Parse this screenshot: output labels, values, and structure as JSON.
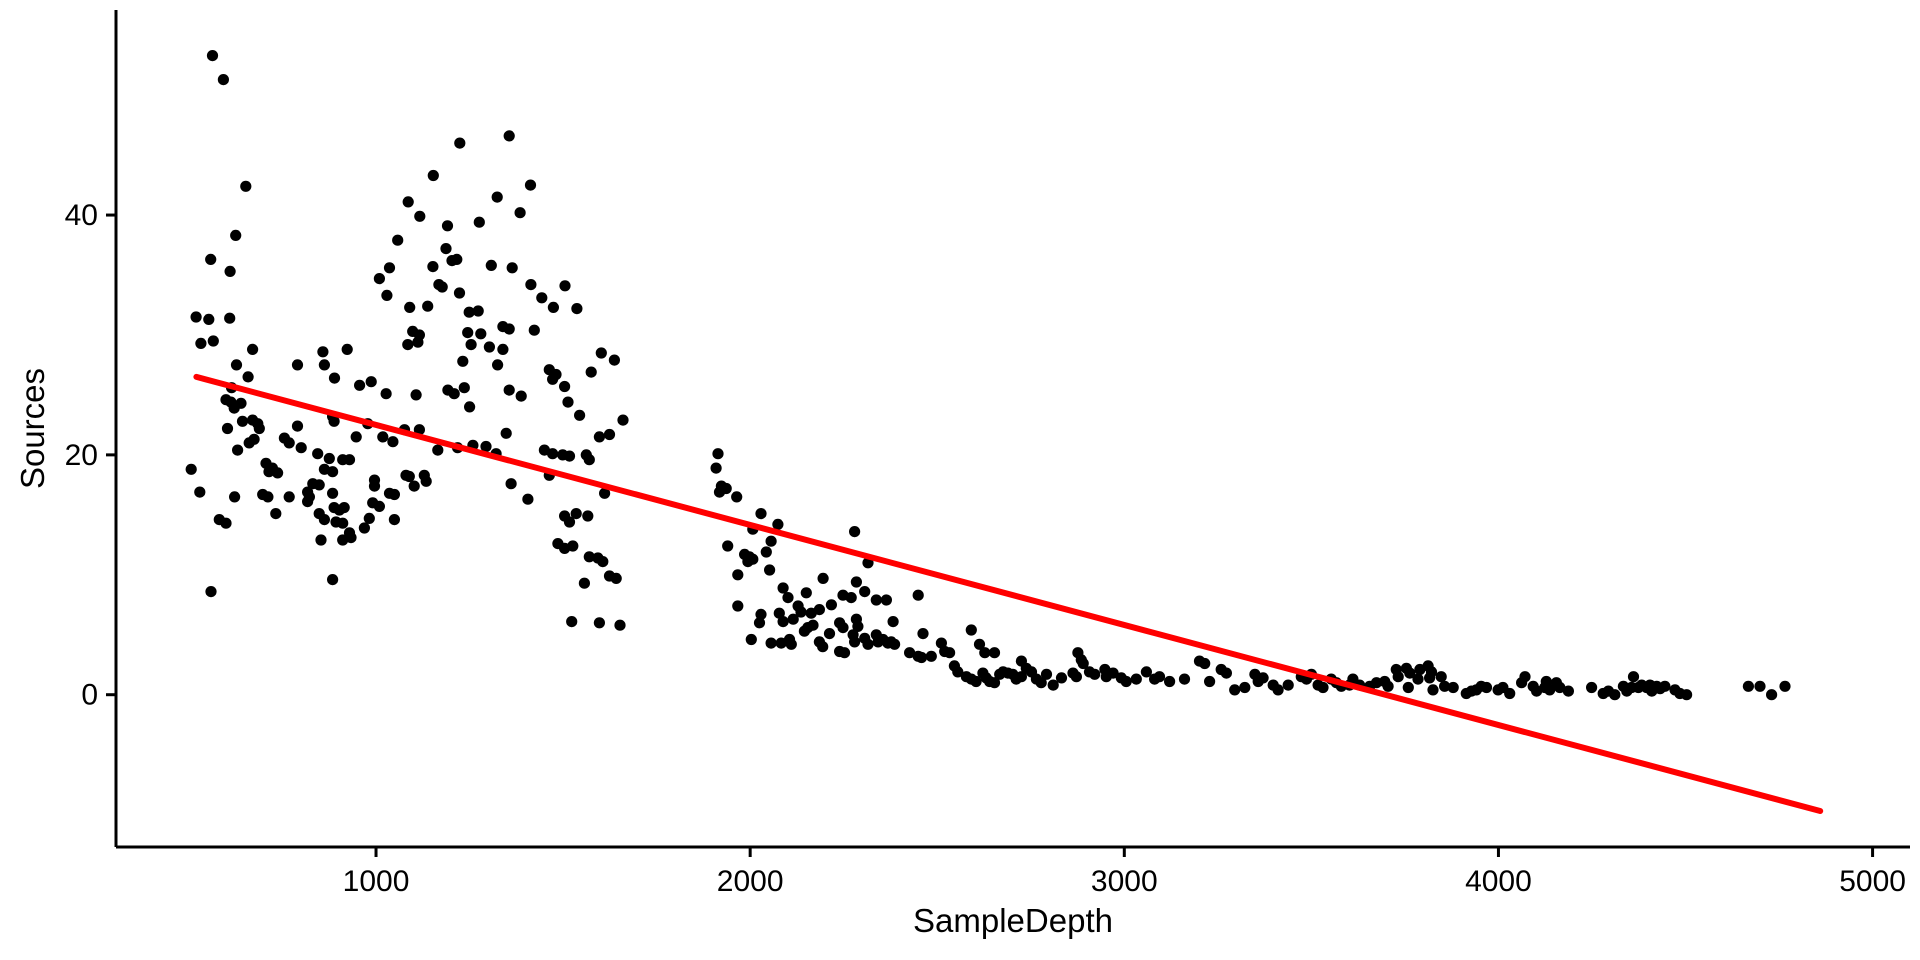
{
  "chart_data": {
    "type": "scatter",
    "title": "",
    "xlabel": "SampleDepth",
    "ylabel": "Sources",
    "x_ticks": [
      1000,
      2000,
      3000,
      4000,
      5000
    ],
    "y_ticks": [
      0,
      20,
      40
    ],
    "x_range": [
      305,
      5100
    ],
    "y_range": [
      -12.7,
      57.1
    ],
    "grid": false,
    "legend": "none",
    "background_color": "#FFFFFF",
    "axis_color": "#000000",
    "point_color": "#000000",
    "trend_line": {
      "type": "linear-regression",
      "color": "#FF0000",
      "x1": 520,
      "y1": 26.5,
      "x2": 4860,
      "y2": -9.7
    },
    "points": [
      [
        563,
        53.3
      ],
      [
        592,
        51.3
      ],
      [
        652,
        42.4
      ],
      [
        625,
        38.3
      ],
      [
        558,
        36.3
      ],
      [
        610,
        35.3
      ],
      [
        519,
        31.5
      ],
      [
        553,
        31.3
      ],
      [
        609,
        31.4
      ],
      [
        565,
        29.5
      ],
      [
        532,
        29.3
      ],
      [
        1224,
        46
      ],
      [
        1356,
        46.6
      ],
      [
        1153,
        43.3
      ],
      [
        1413,
        42.5
      ],
      [
        1324,
        41.5
      ],
      [
        1086,
        41.1
      ],
      [
        1117,
        39.9
      ],
      [
        1191,
        39.1
      ],
      [
        1276,
        39.4
      ],
      [
        1385,
        40.2
      ],
      [
        1058,
        37.9
      ],
      [
        1187,
        37.2
      ],
      [
        1203,
        36.2
      ],
      [
        1216,
        36.3
      ],
      [
        1152,
        35.7
      ],
      [
        1036,
        35.6
      ],
      [
        1308,
        35.8
      ],
      [
        1364,
        35.6
      ],
      [
        1009,
        34.7
      ],
      [
        1029,
        33.3
      ],
      [
        1168,
        34.2
      ],
      [
        1177,
        34
      ],
      [
        1223,
        33.5
      ],
      [
        1414,
        34.2
      ],
      [
        1443,
        33.1
      ],
      [
        1505,
        34.1
      ],
      [
        1090,
        32.3
      ],
      [
        1138,
        32.4
      ],
      [
        1249,
        31.9
      ],
      [
        1273,
        32
      ],
      [
        1339,
        30.7
      ],
      [
        1356,
        30.5
      ],
      [
        1423,
        30.4
      ],
      [
        1474,
        32.3
      ],
      [
        1537,
        32.2
      ],
      [
        1098,
        30.3
      ],
      [
        1116,
        30
      ],
      [
        1245,
        30.2
      ],
      [
        1280,
        30.1
      ],
      [
        1085,
        29.2
      ],
      [
        1112,
        29.4
      ],
      [
        1254,
        29.2
      ],
      [
        1303,
        29
      ],
      [
        1339,
        28.8
      ],
      [
        1602,
        28.5
      ],
      [
        1637,
        27.9
      ],
      [
        670,
        28.8
      ],
      [
        858,
        28.6
      ],
      [
        923,
        28.8
      ],
      [
        627,
        27.5
      ],
      [
        790,
        27.5
      ],
      [
        862,
        27.5
      ],
      [
        1232,
        27.8
      ],
      [
        1325,
        27.5
      ],
      [
        1463,
        27.1
      ],
      [
        1481,
        26.7
      ],
      [
        1472,
        26.3
      ],
      [
        1575,
        26.9
      ],
      [
        658,
        26.5
      ],
      [
        889,
        26.4
      ],
      [
        956,
        25.8
      ],
      [
        987,
        26.1
      ],
      [
        1027,
        25.1
      ],
      [
        1356,
        25.4
      ],
      [
        1388,
        24.9
      ],
      [
        1504,
        25.7
      ],
      [
        1107,
        25
      ],
      [
        1192,
        25.4
      ],
      [
        1209,
        25.1
      ],
      [
        1236,
        25.6
      ],
      [
        1250,
        24
      ],
      [
        599,
        24.6
      ],
      [
        612,
        24.4
      ],
      [
        639,
        24.3
      ],
      [
        621,
        23.9
      ],
      [
        614,
        25.6
      ],
      [
        1513,
        24.4
      ],
      [
        1544,
        23.3
      ],
      [
        1660,
        22.9
      ],
      [
        643,
        22.8
      ],
      [
        670,
        22.9
      ],
      [
        688,
        22.2
      ],
      [
        684,
        22.6
      ],
      [
        603,
        22.2
      ],
      [
        790,
        22.4
      ],
      [
        884,
        23.2
      ],
      [
        888,
        22.8
      ],
      [
        947,
        21.5
      ],
      [
        978,
        22.6
      ],
      [
        1018,
        21.5
      ],
      [
        1045,
        21.1
      ],
      [
        1076,
        22.1
      ],
      [
        1116,
        22.1
      ],
      [
        1165,
        20.4
      ],
      [
        1218,
        20.6
      ],
      [
        1259,
        20.8
      ],
      [
        1294,
        20.7
      ],
      [
        1321,
        20.1
      ],
      [
        1348,
        21.8
      ],
      [
        1450,
        20.4
      ],
      [
        1472,
        20.1
      ],
      [
        1499,
        20
      ],
      [
        1517,
        19.9
      ],
      [
        1562,
        20
      ],
      [
        1570,
        19.6
      ],
      [
        1597,
        21.5
      ],
      [
        1624,
        21.7
      ],
      [
        630,
        20.4
      ],
      [
        661,
        21
      ],
      [
        674,
        21.3
      ],
      [
        706,
        19.3
      ],
      [
        723,
        18.9
      ],
      [
        737,
        18.5
      ],
      [
        714,
        18.6
      ],
      [
        755,
        21.4
      ],
      [
        768,
        21
      ],
      [
        800,
        20.6
      ],
      [
        844,
        20.1
      ],
      [
        875,
        19.7
      ],
      [
        911,
        19.6
      ],
      [
        929,
        19.6
      ],
      [
        862,
        18.8
      ],
      [
        884,
        18.6
      ],
      [
        831,
        17.6
      ],
      [
        848,
        17.5
      ],
      [
        506,
        18.8
      ],
      [
        529,
        16.9
      ],
      [
        622,
        16.5
      ],
      [
        581,
        14.6
      ],
      [
        599,
        14.3
      ],
      [
        697,
        16.7
      ],
      [
        711,
        16.5
      ],
      [
        732,
        15.1
      ],
      [
        768,
        16.5
      ],
      [
        817,
        16.9
      ],
      [
        822,
        16.5
      ],
      [
        817,
        16.1
      ],
      [
        848,
        15.1
      ],
      [
        862,
        14.6
      ],
      [
        884,
        16.8
      ],
      [
        888,
        15.6
      ],
      [
        902,
        15.4
      ],
      [
        915,
        15.6
      ],
      [
        893,
        14.4
      ],
      [
        911,
        14.3
      ],
      [
        929,
        13.5
      ],
      [
        853,
        12.9
      ],
      [
        911,
        12.9
      ],
      [
        933,
        13.1
      ],
      [
        969,
        13.9
      ],
      [
        982,
        14.7
      ],
      [
        991,
        16
      ],
      [
        1009,
        15.7
      ],
      [
        996,
        17.9
      ],
      [
        996,
        17.4
      ],
      [
        1049,
        16.7
      ],
      [
        1036,
        16.8
      ],
      [
        1080,
        18.3
      ],
      [
        1089,
        18.2
      ],
      [
        1129,
        18.3
      ],
      [
        1134,
        17.8
      ],
      [
        1102,
        17.4
      ],
      [
        1049,
        14.6
      ],
      [
        1361,
        17.6
      ],
      [
        1406,
        16.3
      ],
      [
        1463,
        18.3
      ],
      [
        1504,
        14.9
      ],
      [
        1517,
        14.4
      ],
      [
        1535,
        15.1
      ],
      [
        1566,
        14.9
      ],
      [
        1611,
        16.8
      ],
      [
        1486,
        12.6
      ],
      [
        1504,
        12.2
      ],
      [
        1526,
        12.4
      ],
      [
        1570,
        11.5
      ],
      [
        1593,
        11.4
      ],
      [
        1606,
        11.1
      ],
      [
        1624,
        9.9
      ],
      [
        1642,
        9.7
      ],
      [
        1557,
        9.3
      ],
      [
        884,
        9.6
      ],
      [
        559,
        8.6
      ],
      [
        1914,
        20.1
      ],
      [
        1909,
        18.9
      ],
      [
        1923,
        17.4
      ],
      [
        1936,
        17.2
      ],
      [
        1918,
        16.9
      ],
      [
        1964,
        16.5
      ],
      [
        2029,
        15.1
      ],
      [
        2007,
        13.8
      ],
      [
        2074,
        14.2
      ],
      [
        2056,
        12.8
      ],
      [
        1940,
        12.4
      ],
      [
        2043,
        11.9
      ],
      [
        1985,
        11.7
      ],
      [
        1998,
        11.5
      ],
      [
        1994,
        11.1
      ],
      [
        2007,
        11.3
      ],
      [
        2052,
        10.4
      ],
      [
        2279,
        13.6
      ],
      [
        2315,
        11
      ],
      [
        1967,
        10
      ],
      [
        2088,
        8.9
      ],
      [
        2195,
        9.7
      ],
      [
        2284,
        9.4
      ],
      [
        2101,
        8.1
      ],
      [
        2128,
        7.4
      ],
      [
        2150,
        8.5
      ],
      [
        2248,
        8.3
      ],
      [
        2270,
        8.1
      ],
      [
        2306,
        8.6
      ],
      [
        2337,
        7.9
      ],
      [
        2364,
        7.9
      ],
      [
        2449,
        8.3
      ],
      [
        1967,
        7.4
      ],
      [
        2078,
        6.8
      ],
      [
        2185,
        7.1
      ],
      [
        2217,
        7.5
      ],
      [
        1523,
        6.1
      ],
      [
        1597,
        6
      ],
      [
        1652,
        5.8
      ],
      [
        2029,
        6.7
      ],
      [
        2136,
        6.9
      ],
      [
        2163,
        6.8
      ],
      [
        2025,
        6
      ],
      [
        2088,
        6.1
      ],
      [
        2115,
        6.3
      ],
      [
        2154,
        5.6
      ],
      [
        2168,
        5.8
      ],
      [
        2239,
        6
      ],
      [
        2248,
        5.6
      ],
      [
        2284,
        6.3
      ],
      [
        2288,
        5.7
      ],
      [
        2382,
        6.1
      ],
      [
        2462,
        5.1
      ],
      [
        2003,
        4.6
      ],
      [
        2056,
        4.3
      ],
      [
        2083,
        4.3
      ],
      [
        2105,
        4.6
      ],
      [
        2110,
        4.2
      ],
      [
        2145,
        5.3
      ],
      [
        2185,
        4.4
      ],
      [
        2194,
        4
      ],
      [
        2212,
        5.1
      ],
      [
        2239,
        3.6
      ],
      [
        2252,
        3.5
      ],
      [
        2275,
        5
      ],
      [
        2279,
        4.4
      ],
      [
        2306,
        4.7
      ],
      [
        2315,
        4.2
      ],
      [
        2337,
        5
      ],
      [
        2342,
        4.4
      ],
      [
        2355,
        4.6
      ],
      [
        2368,
        4.3
      ],
      [
        2377,
        4.4
      ],
      [
        2386,
        4.2
      ],
      [
        2426,
        3.5
      ],
      [
        2449,
        3.2
      ],
      [
        2458,
        3.1
      ],
      [
        2484,
        3.2
      ],
      [
        2511,
        4.3
      ],
      [
        2520,
        3.6
      ],
      [
        2533,
        3.5
      ],
      [
        2591,
        5.4
      ],
      [
        2613,
        4.2
      ],
      [
        2627,
        3.5
      ],
      [
        2653,
        3.5
      ],
      [
        2546,
        2.4
      ],
      [
        2555,
        1.9
      ],
      [
        2578,
        1.5
      ],
      [
        2591,
        1.3
      ],
      [
        2604,
        1.1
      ],
      [
        2622,
        1.8
      ],
      [
        2631,
        1.4
      ],
      [
        2640,
        1.1
      ],
      [
        2653,
        1
      ],
      [
        2667,
        1.7
      ],
      [
        2676,
        1.9
      ],
      [
        2689,
        1.8
      ],
      [
        2702,
        1.7
      ],
      [
        2711,
        1.3
      ],
      [
        2725,
        1.5
      ],
      [
        2725,
        2.8
      ],
      [
        2738,
        2.2
      ],
      [
        2752,
        1.9
      ],
      [
        2765,
        1.3
      ],
      [
        2778,
        1
      ],
      [
        2792,
        1.7
      ],
      [
        2810,
        0.8
      ],
      [
        2832,
        1.4
      ],
      [
        2863,
        1.8
      ],
      [
        2872,
        1.5
      ],
      [
        2890,
        2.6
      ],
      [
        2907,
        1.9
      ],
      [
        2921,
        1.7
      ],
      [
        2948,
        2.1
      ],
      [
        2952,
        1.5
      ],
      [
        2970,
        1.8
      ],
      [
        2876,
        3.5
      ],
      [
        2885,
        2.9
      ],
      [
        2992,
        1.4
      ],
      [
        3005,
        1.1
      ],
      [
        3032,
        1.3
      ],
      [
        3059,
        1.9
      ],
      [
        3081,
        1.3
      ],
      [
        3094,
        1.5
      ],
      [
        3121,
        1.1
      ],
      [
        3161,
        1.3
      ],
      [
        3201,
        2.8
      ],
      [
        3215,
        2.6
      ],
      [
        3228,
        1.1
      ],
      [
        3259,
        2.1
      ],
      [
        3273,
        1.8
      ],
      [
        3295,
        0.4
      ],
      [
        3322,
        0.6
      ],
      [
        3349,
        1.7
      ],
      [
        3358,
        1.1
      ],
      [
        3371,
        1.4
      ],
      [
        3398,
        0.8
      ],
      [
        3411,
        0.4
      ],
      [
        3438,
        0.8
      ],
      [
        3473,
        1.5
      ],
      [
        3487,
        1.3
      ],
      [
        3500,
        1.7
      ],
      [
        3518,
        0.8
      ],
      [
        3531,
        0.6
      ],
      [
        3553,
        1.3
      ],
      [
        3567,
        1
      ],
      [
        3580,
        0.7
      ],
      [
        3602,
        0.8
      ],
      [
        3611,
        1.3
      ],
      [
        3629,
        0.8
      ],
      [
        3656,
        0.7
      ],
      [
        3674,
        1
      ],
      [
        3696,
        1.1
      ],
      [
        3705,
        0.7
      ],
      [
        3727,
        2.1
      ],
      [
        3732,
        1.5
      ],
      [
        3754,
        2.2
      ],
      [
        3763,
        1.8
      ],
      [
        3759,
        0.6
      ],
      [
        3785,
        1.3
      ],
      [
        3790,
        2.1
      ],
      [
        3812,
        2.4
      ],
      [
        3821,
        1.9
      ],
      [
        3816,
        1.4
      ],
      [
        3825,
        0.4
      ],
      [
        3847,
        1.5
      ],
      [
        3856,
        0.7
      ],
      [
        3879,
        0.6
      ],
      [
        3914,
        0.1
      ],
      [
        3928,
        0.3
      ],
      [
        3941,
        0.4
      ],
      [
        3954,
        0.7
      ],
      [
        3968,
        0.6
      ],
      [
        3999,
        0.4
      ],
      [
        4012,
        0.6
      ],
      [
        4030,
        0.1
      ],
      [
        4062,
        1
      ],
      [
        4071,
        1.5
      ],
      [
        4093,
        0.7
      ],
      [
        4102,
        0.3
      ],
      [
        4124,
        0.6
      ],
      [
        4128,
        1.1
      ],
      [
        4137,
        0.4
      ],
      [
        4155,
        1
      ],
      [
        4164,
        0.6
      ],
      [
        4187,
        0.3
      ],
      [
        4249,
        0.6
      ],
      [
        4280,
        0.1
      ],
      [
        4294,
        0.3
      ],
      [
        4311,
        0
      ],
      [
        4334,
        0.7
      ],
      [
        4343,
        0.3
      ],
      [
        4356,
        0.6
      ],
      [
        4361,
        1.5
      ],
      [
        4374,
        0.6
      ],
      [
        4383,
        0.8
      ],
      [
        4396,
        0.6
      ],
      [
        4405,
        0.8
      ],
      [
        4410,
        0.3
      ],
      [
        4423,
        0.7
      ],
      [
        4432,
        0.5
      ],
      [
        4445,
        0.7
      ],
      [
        4472,
        0.4
      ],
      [
        4485,
        0.1
      ],
      [
        4503,
        0
      ],
      [
        4668,
        0.7
      ],
      [
        4699,
        0.7
      ],
      [
        4730,
        0
      ],
      [
        4766,
        0.7
      ]
    ]
  }
}
